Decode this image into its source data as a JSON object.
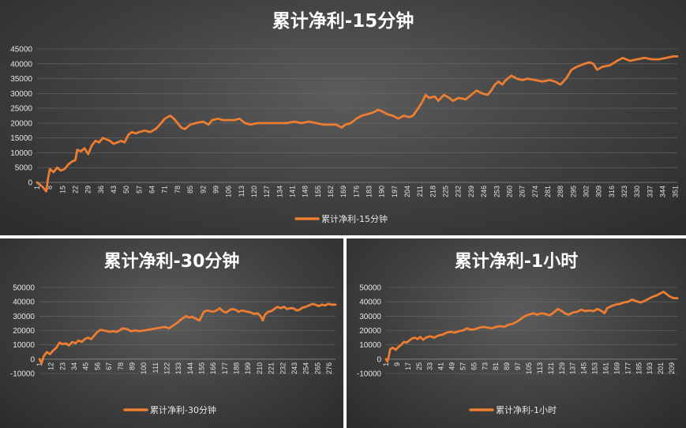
{
  "chart_data": [
    {
      "type": "line",
      "title": "累计净利-15分钟",
      "legend": "累计净利-15分钟",
      "legend_position": "bottom",
      "color": "#ed7d31",
      "ylim": [
        0,
        45000
      ],
      "yticks": [
        0,
        5000,
        10000,
        15000,
        20000,
        25000,
        30000,
        35000,
        40000,
        45000
      ],
      "xlim": [
        1,
        352
      ],
      "xticks": [
        1,
        8,
        15,
        22,
        29,
        36,
        43,
        50,
        57,
        64,
        71,
        78,
        85,
        92,
        99,
        106,
        113,
        120,
        127,
        134,
        141,
        148,
        155,
        162,
        169,
        176,
        183,
        190,
        197,
        204,
        211,
        218,
        225,
        232,
        239,
        246,
        253,
        260,
        267,
        274,
        281,
        288,
        295,
        302,
        309,
        316,
        323,
        330,
        337,
        344,
        351
      ],
      "grid": true,
      "points": [
        [
          1,
          0
        ],
        [
          4,
          -1500
        ],
        [
          6,
          -3000
        ],
        [
          7,
          1500
        ],
        [
          8,
          4500
        ],
        [
          10,
          3500
        ],
        [
          12,
          5000
        ],
        [
          14,
          4000
        ],
        [
          16,
          4500
        ],
        [
          18,
          6000
        ],
        [
          20,
          7000
        ],
        [
          22,
          7500
        ],
        [
          23,
          11000
        ],
        [
          25,
          10500
        ],
        [
          27,
          11500
        ],
        [
          29,
          9500
        ],
        [
          31,
          12500
        ],
        [
          33,
          14000
        ],
        [
          35,
          13500
        ],
        [
          37,
          15000
        ],
        [
          39,
          14500
        ],
        [
          41,
          14000
        ],
        [
          43,
          13000
        ],
        [
          45,
          13500
        ],
        [
          47,
          14000
        ],
        [
          49,
          13500
        ],
        [
          51,
          16000
        ],
        [
          53,
          17000
        ],
        [
          55,
          16500
        ],
        [
          57,
          17000
        ],
        [
          60,
          17500
        ],
        [
          63,
          17000
        ],
        [
          66,
          18000
        ],
        [
          69,
          20000
        ],
        [
          71,
          21500
        ],
        [
          74,
          22500
        ],
        [
          76,
          21500
        ],
        [
          78,
          20000
        ],
        [
          80,
          18500
        ],
        [
          82,
          18000
        ],
        [
          85,
          19500
        ],
        [
          88,
          20000
        ],
        [
          92,
          20500
        ],
        [
          95,
          19500
        ],
        [
          97,
          21000
        ],
        [
          100,
          21500
        ],
        [
          103,
          21000
        ],
        [
          106,
          21000
        ],
        [
          109,
          21000
        ],
        [
          112,
          21500
        ],
        [
          115,
          20000
        ],
        [
          118,
          19500
        ],
        [
          122,
          20000
        ],
        [
          126,
          20000
        ],
        [
          130,
          20000
        ],
        [
          134,
          20000
        ],
        [
          138,
          20000
        ],
        [
          142,
          20500
        ],
        [
          146,
          20000
        ],
        [
          150,
          20500
        ],
        [
          154,
          20000
        ],
        [
          158,
          19500
        ],
        [
          162,
          19500
        ],
        [
          165,
          19500
        ],
        [
          168,
          18500
        ],
        [
          170,
          19500
        ],
        [
          173,
          20000
        ],
        [
          176,
          21500
        ],
        [
          179,
          22500
        ],
        [
          182,
          23000
        ],
        [
          185,
          23500
        ],
        [
          188,
          24500
        ],
        [
          190,
          24000
        ],
        [
          193,
          23000
        ],
        [
          196,
          22500
        ],
        [
          199,
          21500
        ],
        [
          202,
          22500
        ],
        [
          205,
          22000
        ],
        [
          207,
          22500
        ],
        [
          210,
          25000
        ],
        [
          212,
          27000
        ],
        [
          214,
          29500
        ],
        [
          216,
          28500
        ],
        [
          219,
          29000
        ],
        [
          221,
          27500
        ],
        [
          224,
          29500
        ],
        [
          227,
          28500
        ],
        [
          229,
          27500
        ],
        [
          232,
          28500
        ],
        [
          236,
          28000
        ],
        [
          239,
          29500
        ],
        [
          242,
          31000
        ],
        [
          245,
          30000
        ],
        [
          248,
          29500
        ],
        [
          250,
          31000
        ],
        [
          252,
          33000
        ],
        [
          254,
          34000
        ],
        [
          256,
          33000
        ],
        [
          258,
          34500
        ],
        [
          261,
          36000
        ],
        [
          264,
          35000
        ],
        [
          267,
          34500
        ],
        [
          270,
          35000
        ],
        [
          274,
          34500
        ],
        [
          278,
          34000
        ],
        [
          282,
          34500
        ],
        [
          285,
          34000
        ],
        [
          288,
          33000
        ],
        [
          291,
          35000
        ],
        [
          294,
          38000
        ],
        [
          297,
          39000
        ],
        [
          301,
          40000
        ],
        [
          304,
          40500
        ],
        [
          306,
          40000
        ],
        [
          308,
          38000
        ],
        [
          311,
          39000
        ],
        [
          315,
          39500
        ],
        [
          319,
          41000
        ],
        [
          322,
          42000
        ],
        [
          326,
          41000
        ],
        [
          330,
          41500
        ],
        [
          334,
          42000
        ],
        [
          338,
          41500
        ],
        [
          342,
          41500
        ],
        [
          346,
          42000
        ],
        [
          350,
          42500
        ],
        [
          352,
          42500
        ]
      ]
    },
    {
      "type": "line",
      "title": "累计净利-30分钟",
      "legend": "累计净利-30分钟",
      "legend_position": "bottom",
      "color": "#ed7d31",
      "ylim": [
        -10000,
        50000
      ],
      "yticks": [
        -10000,
        0,
        10000,
        20000,
        30000,
        40000,
        50000
      ],
      "xlim": [
        1,
        282
      ],
      "xticks": [
        1,
        12,
        23,
        34,
        45,
        56,
        67,
        78,
        89,
        100,
        111,
        122,
        133,
        144,
        155,
        166,
        177,
        188,
        199,
        210,
        221,
        232,
        243,
        254,
        265,
        276
      ],
      "grid": true,
      "points": [
        [
          1,
          0
        ],
        [
          3,
          -3000
        ],
        [
          5,
          2000
        ],
        [
          8,
          5000
        ],
        [
          11,
          3500
        ],
        [
          14,
          6000
        ],
        [
          17,
          8000
        ],
        [
          20,
          11500
        ],
        [
          23,
          10500
        ],
        [
          26,
          11000
        ],
        [
          29,
          9500
        ],
        [
          32,
          12000
        ],
        [
          35,
          11000
        ],
        [
          38,
          13000
        ],
        [
          41,
          12000
        ],
        [
          44,
          14000
        ],
        [
          47,
          15000
        ],
        [
          50,
          14000
        ],
        [
          53,
          16500
        ],
        [
          56,
          19000
        ],
        [
          59,
          20500
        ],
        [
          62,
          20000
        ],
        [
          65,
          19500
        ],
        [
          68,
          19000
        ],
        [
          71,
          19500
        ],
        [
          74,
          19000
        ],
        [
          77,
          20000
        ],
        [
          80,
          21500
        ],
        [
          84,
          21000
        ],
        [
          88,
          19500
        ],
        [
          92,
          20000
        ],
        [
          96,
          19500
        ],
        [
          100,
          20000
        ],
        [
          104,
          20500
        ],
        [
          108,
          21000
        ],
        [
          112,
          21500
        ],
        [
          116,
          22000
        ],
        [
          120,
          22500
        ],
        [
          124,
          21500
        ],
        [
          128,
          23500
        ],
        [
          132,
          25500
        ],
        [
          136,
          28000
        ],
        [
          140,
          30000
        ],
        [
          143,
          29000
        ],
        [
          146,
          29500
        ],
        [
          150,
          28000
        ],
        [
          153,
          27000
        ],
        [
          155,
          30000
        ],
        [
          157,
          33000
        ],
        [
          160,
          34000
        ],
        [
          163,
          33500
        ],
        [
          166,
          33000
        ],
        [
          169,
          34000
        ],
        [
          172,
          35500
        ],
        [
          175,
          33500
        ],
        [
          178,
          32500
        ],
        [
          181,
          34000
        ],
        [
          184,
          35000
        ],
        [
          187,
          34500
        ],
        [
          190,
          33000
        ],
        [
          193,
          34000
        ],
        [
          196,
          33500
        ],
        [
          199,
          33000
        ],
        [
          202,
          32500
        ],
        [
          205,
          31500
        ],
        [
          208,
          32000
        ],
        [
          211,
          30000
        ],
        [
          213,
          27000
        ],
        [
          215,
          31000
        ],
        [
          218,
          33000
        ],
        [
          221,
          33500
        ],
        [
          224,
          35000
        ],
        [
          227,
          36500
        ],
        [
          230,
          35500
        ],
        [
          233,
          36500
        ],
        [
          236,
          35000
        ],
        [
          239,
          35500
        ],
        [
          242,
          35500
        ],
        [
          245,
          34000
        ],
        [
          248,
          34500
        ],
        [
          251,
          36000
        ],
        [
          254,
          36500
        ],
        [
          257,
          37500
        ],
        [
          260,
          38500
        ],
        [
          263,
          38000
        ],
        [
          266,
          37000
        ],
        [
          269,
          38000
        ],
        [
          272,
          37500
        ],
        [
          275,
          38500
        ],
        [
          278,
          38000
        ],
        [
          282,
          38000
        ]
      ]
    },
    {
      "type": "line",
      "title": "累计净利-1小时",
      "legend": "累计净利-1小时",
      "legend_position": "bottom",
      "color": "#ed7d31",
      "ylim": [
        -10000,
        50000
      ],
      "yticks": [
        -10000,
        0,
        10000,
        20000,
        30000,
        40000,
        50000
      ],
      "xlim": [
        1,
        213
      ],
      "xticks": [
        1,
        9,
        17,
        25,
        33,
        41,
        49,
        57,
        65,
        73,
        81,
        89,
        97,
        105,
        113,
        121,
        129,
        137,
        145,
        153,
        161,
        169,
        177,
        185,
        193,
        201,
        209
      ],
      "grid": true,
      "points": [
        [
          1,
          0
        ],
        [
          2,
          -1500
        ],
        [
          3,
          2000
        ],
        [
          4,
          7000
        ],
        [
          6,
          8000
        ],
        [
          8,
          6500
        ],
        [
          10,
          8500
        ],
        [
          12,
          10000
        ],
        [
          14,
          12000
        ],
        [
          16,
          11500
        ],
        [
          18,
          13000
        ],
        [
          20,
          14500
        ],
        [
          22,
          15000
        ],
        [
          24,
          14000
        ],
        [
          26,
          15500
        ],
        [
          28,
          13500
        ],
        [
          30,
          15000
        ],
        [
          33,
          16000
        ],
        [
          36,
          15000
        ],
        [
          39,
          16500
        ],
        [
          42,
          17000
        ],
        [
          45,
          18500
        ],
        [
          48,
          19000
        ],
        [
          51,
          18500
        ],
        [
          54,
          19500
        ],
        [
          57,
          20000
        ],
        [
          60,
          21500
        ],
        [
          63,
          20500
        ],
        [
          66,
          21000
        ],
        [
          69,
          22000
        ],
        [
          72,
          22500
        ],
        [
          75,
          22000
        ],
        [
          78,
          21500
        ],
        [
          81,
          22500
        ],
        [
          84,
          23000
        ],
        [
          87,
          22500
        ],
        [
          90,
          24000
        ],
        [
          93,
          24500
        ],
        [
          96,
          26000
        ],
        [
          99,
          28000
        ],
        [
          102,
          30000
        ],
        [
          105,
          31000
        ],
        [
          108,
          32000
        ],
        [
          111,
          31000
        ],
        [
          114,
          32000
        ],
        [
          117,
          31500
        ],
        [
          120,
          30500
        ],
        [
          123,
          32500
        ],
        [
          126,
          35000
        ],
        [
          129,
          33500
        ],
        [
          131,
          32000
        ],
        [
          134,
          31000
        ],
        [
          137,
          32500
        ],
        [
          140,
          33000
        ],
        [
          143,
          34500
        ],
        [
          146,
          33500
        ],
        [
          149,
          34000
        ],
        [
          152,
          33500
        ],
        [
          155,
          35000
        ],
        [
          158,
          33500
        ],
        [
          160,
          32000
        ],
        [
          162,
          35500
        ],
        [
          165,
          37000
        ],
        [
          168,
          38000
        ],
        [
          171,
          38500
        ],
        [
          174,
          39500
        ],
        [
          177,
          40000
        ],
        [
          180,
          41500
        ],
        [
          183,
          40500
        ],
        [
          186,
          39500
        ],
        [
          189,
          40500
        ],
        [
          192,
          42000
        ],
        [
          195,
          43500
        ],
        [
          198,
          44500
        ],
        [
          201,
          46000
        ],
        [
          203,
          47000
        ],
        [
          205,
          45500
        ],
        [
          207,
          44000
        ],
        [
          209,
          43000
        ],
        [
          211,
          42500
        ],
        [
          213,
          42500
        ]
      ]
    }
  ]
}
